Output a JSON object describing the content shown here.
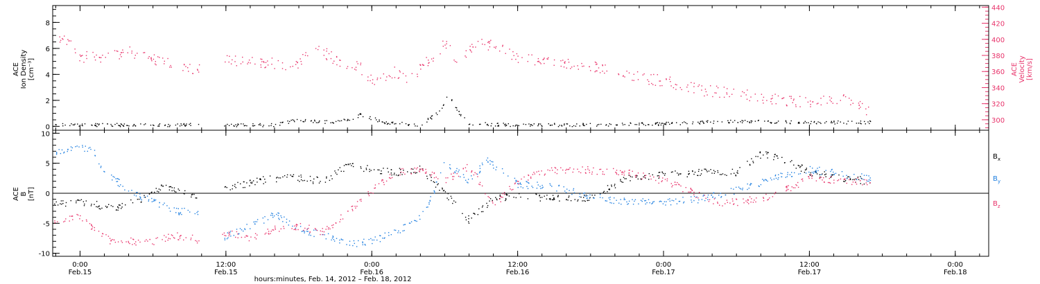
{
  "colors": {
    "black": "#000000",
    "pink": "#e8326a",
    "blue": "#1f7fe0"
  },
  "xaxis": {
    "label": "hours:minutes, Feb. 14, 2012 – Feb. 18, 2012",
    "ticks": [
      {
        "t": "2012-02-15T00:00",
        "time": "0:00",
        "date": "Feb.15"
      },
      {
        "t": "2012-02-15T12:00",
        "time": "12:00",
        "date": "Feb.15"
      },
      {
        "t": "2012-02-16T00:00",
        "time": "0:00",
        "date": "Feb.16"
      },
      {
        "t": "2012-02-16T12:00",
        "time": "12:00",
        "date": "Feb.16"
      },
      {
        "t": "2012-02-17T00:00",
        "time": "0:00",
        "date": "Feb.17"
      },
      {
        "t": "2012-02-17T12:00",
        "time": "12:00",
        "date": "Feb.17"
      },
      {
        "t": "2012-02-18T00:00",
        "time": "0:00",
        "date": "Feb.18"
      }
    ]
  },
  "chart_data": [
    {
      "type": "scatter",
      "xlim": [
        "2012-02-14T21:45",
        "2012-02-18T02:45"
      ],
      "ylabel_left": [
        "ACE",
        "Ion Density",
        "[cm⁻³]"
      ],
      "ylabel_right": [
        "ACE",
        "Velocity",
        "[km/s]"
      ],
      "ylim_left": [
        -0.3,
        9.3
      ],
      "yticks_left": [
        "0",
        "2",
        "4",
        "6",
        "8"
      ],
      "ylim_right": [
        287,
        442
      ],
      "yticks_right": [
        "300",
        "320",
        "340",
        "360",
        "380",
        "400",
        "420",
        "440"
      ],
      "series": [
        {
          "axis": "left",
          "color": "black",
          "points": [
            [
              "2012-02-14T21:50",
              0.1
            ],
            [
              "2012-02-15T06:00",
              0.1
            ],
            [
              "2012-02-15T09:50",
              0.1
            ],
            [
              "2012-02-15T11:40",
              0.05
            ],
            [
              "2012-02-15T16:00",
              0.1
            ],
            [
              "2012-02-15T18:00",
              0.5
            ],
            [
              "2012-02-15T20:00",
              0.3
            ],
            [
              "2012-02-15T22:30",
              0.5
            ],
            [
              "2012-02-15T23:00",
              0.9
            ],
            [
              "2012-02-16T01:00",
              0.3
            ],
            [
              "2012-02-16T04:00",
              0.1
            ],
            [
              "2012-02-16T05:40",
              1.2
            ],
            [
              "2012-02-16T06:15",
              2.5
            ],
            [
              "2012-02-16T07:00",
              1.2
            ],
            [
              "2012-02-16T08:00",
              0.2
            ],
            [
              "2012-02-16T12:00",
              0.1
            ],
            [
              "2012-02-16T18:00",
              0.1
            ],
            [
              "2012-02-17T00:00",
              0.2
            ],
            [
              "2012-02-17T06:00",
              0.4
            ],
            [
              "2012-02-17T12:00",
              0.3
            ],
            [
              "2012-02-17T15:00",
              0.3
            ],
            [
              "2012-02-17T17:00",
              0.3
            ]
          ]
        },
        {
          "axis": "right",
          "color": "pink",
          "points": [
            [
              "2012-02-14T21:50",
              405
            ],
            [
              "2012-02-14T23:00",
              395
            ],
            [
              "2012-02-15T00:00",
              378
            ],
            [
              "2012-02-15T02:30",
              378
            ],
            [
              "2012-02-15T04:00",
              386
            ],
            [
              "2012-02-15T06:00",
              375
            ],
            [
              "2012-02-15T08:00",
              366
            ],
            [
              "2012-02-15T09:50",
              362
            ],
            [
              "2012-02-15T11:40",
              378
            ],
            [
              "2012-02-15T13:00",
              373
            ],
            [
              "2012-02-15T15:00",
              371
            ],
            [
              "2012-02-15T18:00",
              368
            ],
            [
              "2012-02-15T19:00",
              393
            ],
            [
              "2012-02-15T21:00",
              375
            ],
            [
              "2012-02-15T23:00",
              365
            ],
            [
              "2012-02-16T00:00",
              350
            ],
            [
              "2012-02-16T01:00",
              352
            ],
            [
              "2012-02-16T02:00",
              360
            ],
            [
              "2012-02-16T03:00",
              345
            ],
            [
              "2012-02-16T04:00",
              365
            ],
            [
              "2012-02-16T05:30",
              385
            ],
            [
              "2012-02-16T06:00",
              395
            ],
            [
              "2012-02-16T07:00",
              375
            ],
            [
              "2012-02-16T08:30",
              395
            ],
            [
              "2012-02-16T10:00",
              393
            ],
            [
              "2012-02-16T12:00",
              378
            ],
            [
              "2012-02-16T15:00",
              370
            ],
            [
              "2012-02-16T18:00",
              368
            ],
            [
              "2012-02-16T21:00",
              355
            ],
            [
              "2012-02-17T00:00",
              348
            ],
            [
              "2012-02-17T03:00",
              337
            ],
            [
              "2012-02-17T06:00",
              333
            ],
            [
              "2012-02-17T09:00",
              325
            ],
            [
              "2012-02-17T12:00",
              322
            ],
            [
              "2012-02-17T15:00",
              325
            ],
            [
              "2012-02-17T17:00",
              310
            ]
          ]
        }
      ]
    },
    {
      "type": "scatter",
      "xlim": [
        "2012-02-14T21:45",
        "2012-02-18T02:45"
      ],
      "ylabel": [
        "ACE",
        "B",
        "[nT]"
      ],
      "ylim": [
        -10.5,
        10.5
      ],
      "yticks": [
        "-10",
        "-5",
        "0",
        "5",
        "10"
      ],
      "series": [
        {
          "name": "B",
          "sub": "x",
          "color": "black",
          "points": [
            [
              "2012-02-14T21:50",
              -1.8
            ],
            [
              "2012-02-15T00:00",
              -1.5
            ],
            [
              "2012-02-15T03:00",
              -2.5
            ],
            [
              "2012-02-15T05:00",
              -1.0
            ],
            [
              "2012-02-15T07:00",
              1.2
            ],
            [
              "2012-02-15T09:50",
              -0.5
            ],
            [
              "2012-02-15T11:40",
              0.5
            ],
            [
              "2012-02-15T14:00",
              1.8
            ],
            [
              "2012-02-15T16:00",
              2.5
            ],
            [
              "2012-02-15T18:00",
              2.5
            ],
            [
              "2012-02-15T20:00",
              2.0
            ],
            [
              "2012-02-15T22:00",
              4.5
            ],
            [
              "2012-02-16T00:00",
              4.0
            ],
            [
              "2012-02-16T02:00",
              3.5
            ],
            [
              "2012-02-16T04:00",
              4.0
            ],
            [
              "2012-02-16T06:00",
              0.0
            ],
            [
              "2012-02-16T08:00",
              -4.5
            ],
            [
              "2012-02-16T10:00",
              -1.0
            ],
            [
              "2012-02-16T12:00",
              -0.5
            ],
            [
              "2012-02-16T15:00",
              -0.8
            ],
            [
              "2012-02-16T18:00",
              -0.8
            ],
            [
              "2012-02-16T21:00",
              2.5
            ],
            [
              "2012-02-17T00:00",
              3.0
            ],
            [
              "2012-02-17T03:00",
              3.5
            ],
            [
              "2012-02-17T06:00",
              3.5
            ],
            [
              "2012-02-17T08:00",
              6.5
            ],
            [
              "2012-02-17T10:00",
              5.5
            ],
            [
              "2012-02-17T12:00",
              3.5
            ],
            [
              "2012-02-17T15:00",
              2.5
            ],
            [
              "2012-02-17T17:00",
              2.0
            ]
          ]
        },
        {
          "name": "B",
          "sub": "y",
          "color": "blue",
          "points": [
            [
              "2012-02-14T21:50",
              6.5
            ],
            [
              "2012-02-15T00:00",
              7.5
            ],
            [
              "2012-02-15T01:00",
              7.5
            ],
            [
              "2012-02-15T02:00",
              3.5
            ],
            [
              "2012-02-15T04:00",
              0.5
            ],
            [
              "2012-02-15T06:00",
              -1.5
            ],
            [
              "2012-02-15T08:00",
              -3.0
            ],
            [
              "2012-02-15T09:50",
              -3.0
            ],
            [
              "2012-02-15T11:40",
              -7.5
            ],
            [
              "2012-02-15T14:00",
              -5.5
            ],
            [
              "2012-02-15T16:00",
              -3.5
            ],
            [
              "2012-02-15T18:00",
              -6.0
            ],
            [
              "2012-02-15T20:00",
              -7.0
            ],
            [
              "2012-02-15T22:00",
              -8.5
            ],
            [
              "2012-02-16T00:00",
              -8.0
            ],
            [
              "2012-02-16T02:00",
              -6.5
            ],
            [
              "2012-02-16T04:00",
              -4.0
            ],
            [
              "2012-02-16T05:00",
              0.0
            ],
            [
              "2012-02-16T06:00",
              5.0
            ],
            [
              "2012-02-16T08:00",
              2.0
            ],
            [
              "2012-02-16T09:30",
              5.5
            ],
            [
              "2012-02-16T11:00",
              3.0
            ],
            [
              "2012-02-16T12:00",
              1.5
            ],
            [
              "2012-02-16T15:00",
              1.0
            ],
            [
              "2012-02-16T18:00",
              -0.5
            ],
            [
              "2012-02-16T21:00",
              -1.5
            ],
            [
              "2012-02-17T00:00",
              -1.5
            ],
            [
              "2012-02-17T03:00",
              -1.0
            ],
            [
              "2012-02-17T06:00",
              0.5
            ],
            [
              "2012-02-17T09:00",
              2.5
            ],
            [
              "2012-02-17T12:00",
              4.0
            ],
            [
              "2012-02-17T15:00",
              3.0
            ],
            [
              "2012-02-17T17:00",
              2.5
            ]
          ]
        },
        {
          "name": "B",
          "sub": "z",
          "color": "pink",
          "points": [
            [
              "2012-02-14T21:50",
              -4.5
            ],
            [
              "2012-02-15T00:00",
              -4.0
            ],
            [
              "2012-02-15T01:30",
              -6.5
            ],
            [
              "2012-02-15T02:30",
              -8.0
            ],
            [
              "2012-02-15T04:00",
              -8.0
            ],
            [
              "2012-02-15T06:00",
              -8.2
            ],
            [
              "2012-02-15T07:30",
              -7.0
            ],
            [
              "2012-02-15T09:50",
              -7.8
            ],
            [
              "2012-02-15T11:40",
              -6.5
            ],
            [
              "2012-02-15T14:00",
              -7.5
            ],
            [
              "2012-02-15T16:00",
              -6.0
            ],
            [
              "2012-02-15T18:00",
              -5.5
            ],
            [
              "2012-02-15T20:00",
              -6.5
            ],
            [
              "2012-02-15T22:00",
              -3.0
            ],
            [
              "2012-02-16T00:00",
              0.5
            ],
            [
              "2012-02-16T02:00",
              3.5
            ],
            [
              "2012-02-16T04:00",
              4.0
            ],
            [
              "2012-02-16T06:00",
              2.0
            ],
            [
              "2012-02-16T08:00",
              4.5
            ],
            [
              "2012-02-16T10:00",
              -2.0
            ],
            [
              "2012-02-16T12:00",
              2.0
            ],
            [
              "2012-02-16T14:00",
              3.5
            ],
            [
              "2012-02-16T16:00",
              4.0
            ],
            [
              "2012-02-16T18:00",
              3.8
            ],
            [
              "2012-02-16T21:00",
              3.5
            ],
            [
              "2012-02-17T00:00",
              2.0
            ],
            [
              "2012-02-17T02:00",
              0.5
            ],
            [
              "2012-02-17T04:00",
              -1.5
            ],
            [
              "2012-02-17T06:00",
              -1.5
            ],
            [
              "2012-02-17T09:00",
              -0.5
            ],
            [
              "2012-02-17T11:00",
              1.5
            ],
            [
              "2012-02-17T12:00",
              2.5
            ],
            [
              "2012-02-17T15:00",
              2.0
            ],
            [
              "2012-02-17T17:00",
              2.0
            ]
          ]
        }
      ]
    }
  ]
}
